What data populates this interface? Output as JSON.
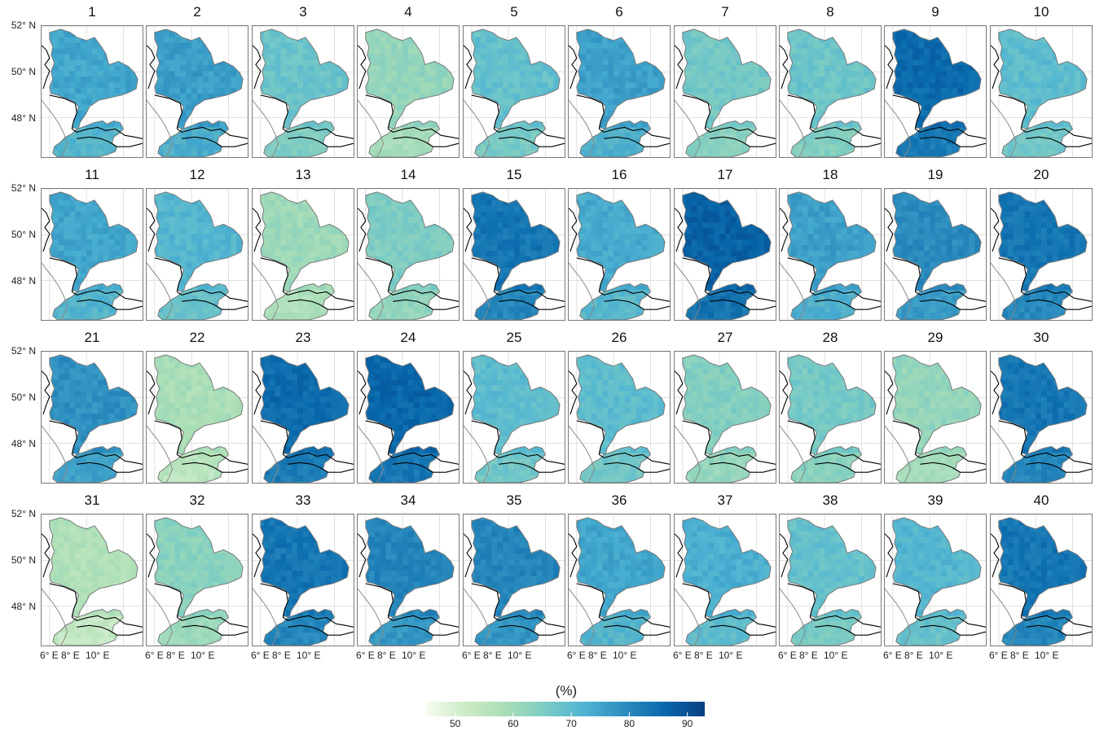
{
  "panels": [
    {
      "label": "1",
      "level": 0.62
    },
    {
      "label": "2",
      "level": 0.65
    },
    {
      "label": "3",
      "level": 0.48
    },
    {
      "label": "4",
      "level": 0.35
    },
    {
      "label": "5",
      "level": 0.5
    },
    {
      "label": "6",
      "level": 0.64
    },
    {
      "label": "7",
      "level": 0.45
    },
    {
      "label": "8",
      "level": 0.47
    },
    {
      "label": "9",
      "level": 0.85
    },
    {
      "label": "10",
      "level": 0.52
    },
    {
      "label": "11",
      "level": 0.62
    },
    {
      "label": "12",
      "level": 0.55
    },
    {
      "label": "13",
      "level": 0.32
    },
    {
      "label": "14",
      "level": 0.42
    },
    {
      "label": "15",
      "level": 0.8
    },
    {
      "label": "16",
      "level": 0.6
    },
    {
      "label": "17",
      "level": 0.88
    },
    {
      "label": "18",
      "level": 0.64
    },
    {
      "label": "19",
      "level": 0.72
    },
    {
      "label": "20",
      "level": 0.8
    },
    {
      "label": "21",
      "level": 0.7
    },
    {
      "label": "22",
      "level": 0.28
    },
    {
      "label": "23",
      "level": 0.84
    },
    {
      "label": "24",
      "level": 0.86
    },
    {
      "label": "25",
      "level": 0.52
    },
    {
      "label": "26",
      "level": 0.52
    },
    {
      "label": "27",
      "level": 0.4
    },
    {
      "label": "28",
      "level": 0.44
    },
    {
      "label": "29",
      "level": 0.35
    },
    {
      "label": "30",
      "level": 0.8
    },
    {
      "label": "31",
      "level": 0.25
    },
    {
      "label": "32",
      "level": 0.38
    },
    {
      "label": "33",
      "level": 0.8
    },
    {
      "label": "34",
      "level": 0.74
    },
    {
      "label": "35",
      "level": 0.74
    },
    {
      "label": "36",
      "level": 0.62
    },
    {
      "label": "37",
      "level": 0.58
    },
    {
      "label": "38",
      "level": 0.5
    },
    {
      "label": "39",
      "level": 0.55
    },
    {
      "label": "40",
      "level": 0.8
    }
  ],
  "y_axis_labels": [
    "52° N",
    "50° N",
    "48° N"
  ],
  "x_axis_labels": [
    "6° E",
    "8° E",
    "10° E"
  ],
  "legend": {
    "title": "(%)",
    "ticks": [
      "50",
      "60",
      "70",
      "80",
      "90"
    ],
    "range": [
      45,
      93
    ],
    "colors": [
      "#f7fcf0",
      "#ccebc5",
      "#a8ddb5",
      "#7bccc4",
      "#4eb3d3",
      "#2b8cbe",
      "#0868ac",
      "#084081"
    ]
  }
}
